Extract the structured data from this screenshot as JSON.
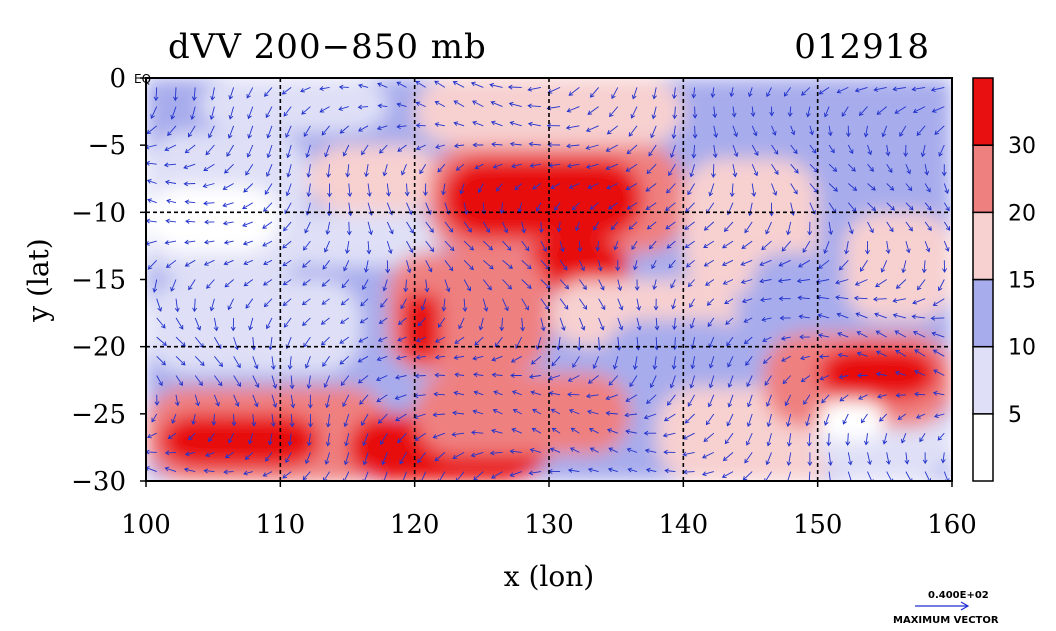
{
  "chart_data": {
    "type": "heatmap",
    "title": "dVV 200−850 mb",
    "date_label": "012918",
    "xlabel": "x (lon)",
    "ylabel": "y (lat)",
    "xlim": [
      100,
      160
    ],
    "ylim": [
      -30,
      0
    ],
    "x_ticks": [
      "100",
      "110",
      "120",
      "130",
      "140",
      "150",
      "160"
    ],
    "y_ticks": [
      "0",
      "−5",
      "−10",
      "−15",
      "−20",
      "−25",
      "−30"
    ],
    "equator_label": "EQ",
    "grid": true,
    "overlay": "wind vectors",
    "colorbar": {
      "levels": [
        5,
        10,
        15,
        20,
        30
      ],
      "labels": [
        "5",
        "10",
        "15",
        "20",
        "30"
      ],
      "colors": [
        "#ffffff",
        "#dfe0f7",
        "#a7acec",
        "#f7d0d0",
        "#ef8080",
        "#e81010"
      ]
    },
    "max_vector_value": "0.400E+02",
    "max_vector_label": "MAXIMUM VECTOR",
    "regions": [
      {
        "x": [
          100,
          160
        ],
        "y": [
          -30,
          0
        ],
        "value": 12
      },
      {
        "x": [
          100,
          112
        ],
        "y": [
          -15,
          -4
        ],
        "value": 6
      },
      {
        "x": [
          100,
          110
        ],
        "y": [
          -13,
          -8
        ],
        "value": 3
      },
      {
        "x": [
          104,
          118
        ],
        "y": [
          -4,
          0
        ],
        "value": 8
      },
      {
        "x": [
          100,
          116
        ],
        "y": [
          -22,
          -15
        ],
        "value": 9
      },
      {
        "x": [
          112,
          122
        ],
        "y": [
          -10,
          -5
        ],
        "value": 16
      },
      {
        "x": [
          110,
          122
        ],
        "y": [
          -14,
          -10
        ],
        "value": 8
      },
      {
        "x": [
          120,
          140
        ],
        "y": [
          -5,
          0
        ],
        "value": 17
      },
      {
        "x": [
          140,
          160
        ],
        "y": [
          -6,
          0
        ],
        "value": 11
      },
      {
        "x": [
          121,
          140
        ],
        "y": [
          -13,
          -5
        ],
        "value": 24
      },
      {
        "x": [
          122,
          137
        ],
        "y": [
          -12,
          -6
        ],
        "value": 33
      },
      {
        "x": [
          128,
          136
        ],
        "y": [
          -16,
          -12
        ],
        "value": 33
      },
      {
        "x": [
          118,
          130
        ],
        "y": [
          -22,
          -13
        ],
        "value": 22
      },
      {
        "x": [
          119,
          122
        ],
        "y": [
          -21,
          -16
        ],
        "value": 32
      },
      {
        "x": [
          130,
          144
        ],
        "y": [
          -20,
          -15
        ],
        "value": 17
      },
      {
        "x": [
          134,
          145
        ],
        "y": [
          -25,
          -18
        ],
        "value": 12
      },
      {
        "x": [
          140,
          150
        ],
        "y": [
          -16,
          -6
        ],
        "value": 18
      },
      {
        "x": [
          145,
          152
        ],
        "y": [
          -18,
          -13
        ],
        "value": 12
      },
      {
        "x": [
          152,
          160
        ],
        "y": [
          -18,
          -10
        ],
        "value": 16
      },
      {
        "x": [
          100,
          118
        ],
        "y": [
          -30,
          -23
        ],
        "value": 24
      },
      {
        "x": [
          101,
          113
        ],
        "y": [
          -29,
          -25
        ],
        "value": 34
      },
      {
        "x": [
          115,
          130
        ],
        "y": [
          -30,
          -25
        ],
        "value": 32
      },
      {
        "x": [
          120,
          136
        ],
        "y": [
          -28,
          -22
        ],
        "value": 22
      },
      {
        "x": [
          138,
          152
        ],
        "y": [
          -30,
          -23
        ],
        "value": 17
      },
      {
        "x": [
          150,
          160
        ],
        "y": [
          -30,
          -24
        ],
        "value": 8
      },
      {
        "x": [
          146,
          160
        ],
        "y": [
          -26,
          -19
        ],
        "value": 22
      },
      {
        "x": [
          150,
          159
        ],
        "y": [
          -24,
          -20
        ],
        "value": 33
      },
      {
        "x": [
          150,
          155
        ],
        "y": [
          -27,
          -24
        ],
        "value": 4
      }
    ]
  }
}
